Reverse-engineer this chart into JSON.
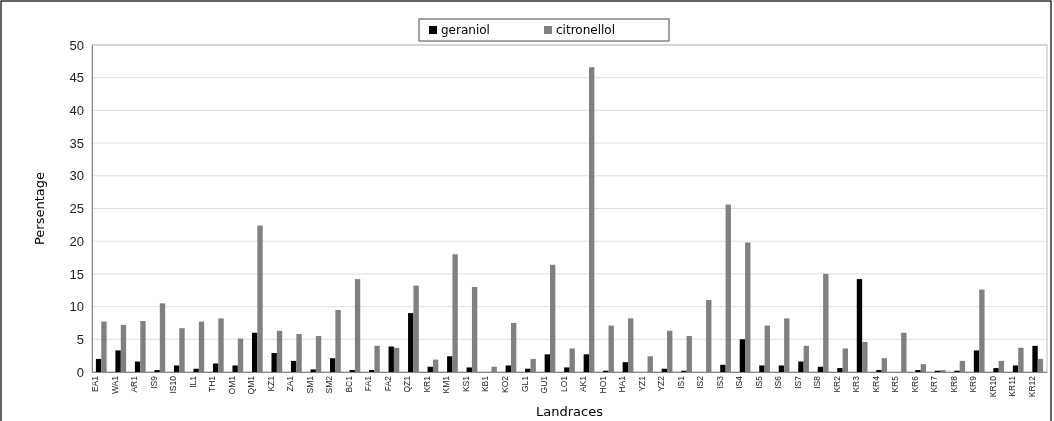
{
  "chart_data": {
    "type": "bar",
    "xlabel": "Landraces",
    "ylabel": "Persentage",
    "categories": [
      "EA1",
      "WA1",
      "AR1",
      "IS9",
      "IS10",
      "IL1",
      "TH1",
      "OM1",
      "QM1",
      "KZ1",
      "ZA1",
      "SM1",
      "SM2",
      "BC1",
      "FA1",
      "FA2",
      "QZ1",
      "KR1",
      "KM1",
      "KS1",
      "KB1",
      "KO2",
      "GL1",
      "GU1",
      "LO1",
      "AK1",
      "HO1",
      "HA1",
      "YZ1",
      "YZ2",
      "IS1",
      "IS2",
      "IS3",
      "IS4",
      "IS5",
      "IS6",
      "IS7",
      "IS8",
      "KR2",
      "KR3",
      "KR4",
      "KR5",
      "KR6",
      "KR7",
      "KR8",
      "KR9",
      "KR10",
      "KR11",
      "KR12"
    ],
    "series": [
      {
        "name": "geraniol",
        "color": "#000000",
        "values": [
          2.0,
          3.3,
          1.6,
          0.3,
          1.0,
          0.5,
          1.3,
          1.0,
          6.0,
          2.9,
          1.7,
          0.4,
          2.1,
          0.3,
          0.3,
          3.9,
          9.0,
          0.8,
          2.4,
          0.7,
          0,
          1.0,
          0.5,
          2.7,
          0.7,
          2.7,
          0.2,
          1.5,
          0,
          0.5,
          0.2,
          0,
          1.1,
          5.0,
          1.0,
          1.0,
          1.6,
          0.8,
          0.6,
          14.2,
          0.3,
          0,
          0.3,
          0.2,
          0.2,
          3.3,
          0.6,
          1.0,
          4.0
        ]
      },
      {
        "name": "citronellol",
        "color": "#808080",
        "values": [
          7.7,
          7.2,
          7.8,
          10.5,
          6.7,
          7.7,
          8.2,
          5.1,
          22.4,
          6.3,
          5.8,
          5.5,
          9.5,
          14.2,
          4.0,
          3.7,
          13.2,
          1.9,
          18.0,
          13.0,
          0.8,
          7.5,
          2.0,
          16.4,
          3.6,
          46.6,
          7.1,
          8.2,
          2.4,
          6.3,
          5.5,
          11.0,
          25.6,
          19.8,
          7.1,
          8.2,
          4.0,
          15.0,
          3.6,
          4.6,
          2.1,
          6.0,
          1.2,
          0.3,
          1.7,
          12.6,
          1.7,
          3.7,
          2.0
        ]
      }
    ],
    "ylim": [
      0,
      50
    ],
    "yticks": [
      0,
      5,
      10,
      15,
      20,
      25,
      30,
      35,
      40,
      45,
      50
    ],
    "grid": "y",
    "legend": "top"
  }
}
